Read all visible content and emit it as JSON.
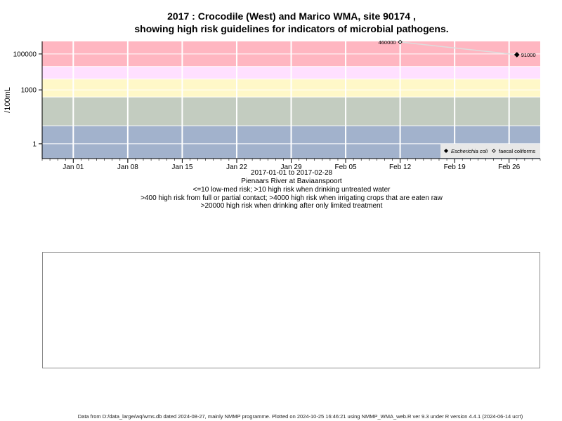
{
  "title": {
    "line1": "2017 : Crocodile (West) and Marico WMA, site 90174 ,",
    "line2": "showing high risk guidelines for indicators of microbial pathogens."
  },
  "colors": {
    "band_top": "#ffb6c1",
    "band_2": "#ffe0ff",
    "band_3": "#fff8c8",
    "band_4": "#c3ccc0",
    "band_5": "#a2b2cc",
    "grid": "#ffffff",
    "line": "#dddddd"
  },
  "chart_data": {
    "type": "line",
    "ylabel": "/100mL",
    "y_scale": "log",
    "ylim": [
      0.15,
      500000
    ],
    "y_ticks": [
      {
        "value": 1,
        "label": "1"
      },
      {
        "value": 1000,
        "label": "1000"
      },
      {
        "value": 100000,
        "label": "100000"
      }
    ],
    "xlim": [
      "2016-12-28",
      "2017-03-02"
    ],
    "x_ticks": [
      {
        "date": "2017-01-01",
        "label": "Jan 01"
      },
      {
        "date": "2017-01-08",
        "label": "Jan 08"
      },
      {
        "date": "2017-01-15",
        "label": "Jan 15"
      },
      {
        "date": "2017-01-22",
        "label": "Jan 22"
      },
      {
        "date": "2017-01-29",
        "label": "Jan 29"
      },
      {
        "date": "2017-02-05",
        "label": "Feb 05"
      },
      {
        "date": "2017-02-12",
        "label": "Feb 12"
      },
      {
        "date": "2017-02-19",
        "label": "Feb 19"
      },
      {
        "date": "2017-02-26",
        "label": "Feb 26"
      }
    ],
    "risk_bands": [
      10,
      400,
      4000,
      20000
    ],
    "series": [
      {
        "name": "Escherichia coli",
        "marker": "filled-diamond",
        "points": [
          {
            "date": "2017-02-27",
            "value": 91000,
            "label": ""
          }
        ]
      },
      {
        "name": "faecal coliforms",
        "marker": "open-diamond",
        "points": [
          {
            "date": "2017-02-12",
            "value": 460000,
            "label": "460000"
          },
          {
            "date": "2017-02-27",
            "value": 91000,
            "label": "91000"
          }
        ]
      }
    ],
    "legend_position": "bottom-right",
    "grid": true
  },
  "captions": [
    "2017-01-01 to 2017-02-28",
    "Pienaars River at Baviaanspoort",
    "<=10 low-med risk; >10 high risk when drinking untreated water",
    ">400 high risk from full or partial contact; >4000 high risk when irrigating crops that are eaten raw",
    ">20000 high risk when drinking after only limited treatment"
  ],
  "footer": "Data from D:/data_large/wq/wms.db dated 2024-08-27, mainly NMMP programme. Plotted on 2024-10-25 16:46:21 using NMMP_WMA_web.R ver 9.3 under R version 4.4.1 (2024-06-14 ucrt)"
}
